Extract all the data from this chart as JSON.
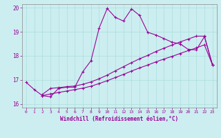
{
  "xlabel": "Windchill (Refroidissement éolien,°C)",
  "background_color": "#cceef0",
  "line_color": "#990099",
  "grid_color": "#aadddd",
  "xlim": [
    -0.5,
    23.5
  ],
  "ylim": [
    15.85,
    20.15
  ],
  "yticks": [
    16,
    17,
    18,
    19,
    20
  ],
  "xticks": [
    0,
    1,
    2,
    3,
    4,
    5,
    6,
    7,
    8,
    9,
    10,
    11,
    12,
    13,
    14,
    15,
    16,
    17,
    18,
    19,
    20,
    21,
    22,
    23
  ],
  "line1_x": [
    0,
    1,
    2,
    3,
    4,
    5,
    6,
    7,
    8,
    9,
    10,
    11,
    12,
    13,
    14,
    15,
    16,
    17,
    18,
    19,
    20,
    21,
    22,
    23
  ],
  "line1_y": [
    16.9,
    16.6,
    16.35,
    16.3,
    16.65,
    16.7,
    16.7,
    17.35,
    17.8,
    19.15,
    19.97,
    19.6,
    19.45,
    19.95,
    19.68,
    18.98,
    18.87,
    18.72,
    18.57,
    18.5,
    18.27,
    18.25,
    18.8,
    17.62
  ],
  "line2_x": [
    2,
    3,
    4,
    5,
    6,
    7,
    8,
    9,
    10,
    11,
    12,
    13,
    14,
    15,
    16,
    17,
    18,
    19,
    20,
    21,
    22,
    23
  ],
  "line2_y": [
    16.4,
    16.65,
    16.68,
    16.72,
    16.75,
    16.82,
    16.92,
    17.05,
    17.2,
    17.38,
    17.55,
    17.72,
    17.88,
    18.02,
    18.18,
    18.32,
    18.45,
    18.58,
    18.7,
    18.82,
    18.82,
    17.62
  ],
  "line3_x": [
    2,
    3,
    4,
    5,
    6,
    7,
    8,
    9,
    10,
    11,
    12,
    13,
    14,
    15,
    16,
    17,
    18,
    19,
    20,
    21,
    22,
    23
  ],
  "line3_y": [
    16.35,
    16.42,
    16.48,
    16.54,
    16.6,
    16.66,
    16.74,
    16.85,
    16.97,
    17.1,
    17.23,
    17.37,
    17.5,
    17.62,
    17.75,
    17.87,
    17.98,
    18.1,
    18.22,
    18.33,
    18.46,
    17.62
  ]
}
